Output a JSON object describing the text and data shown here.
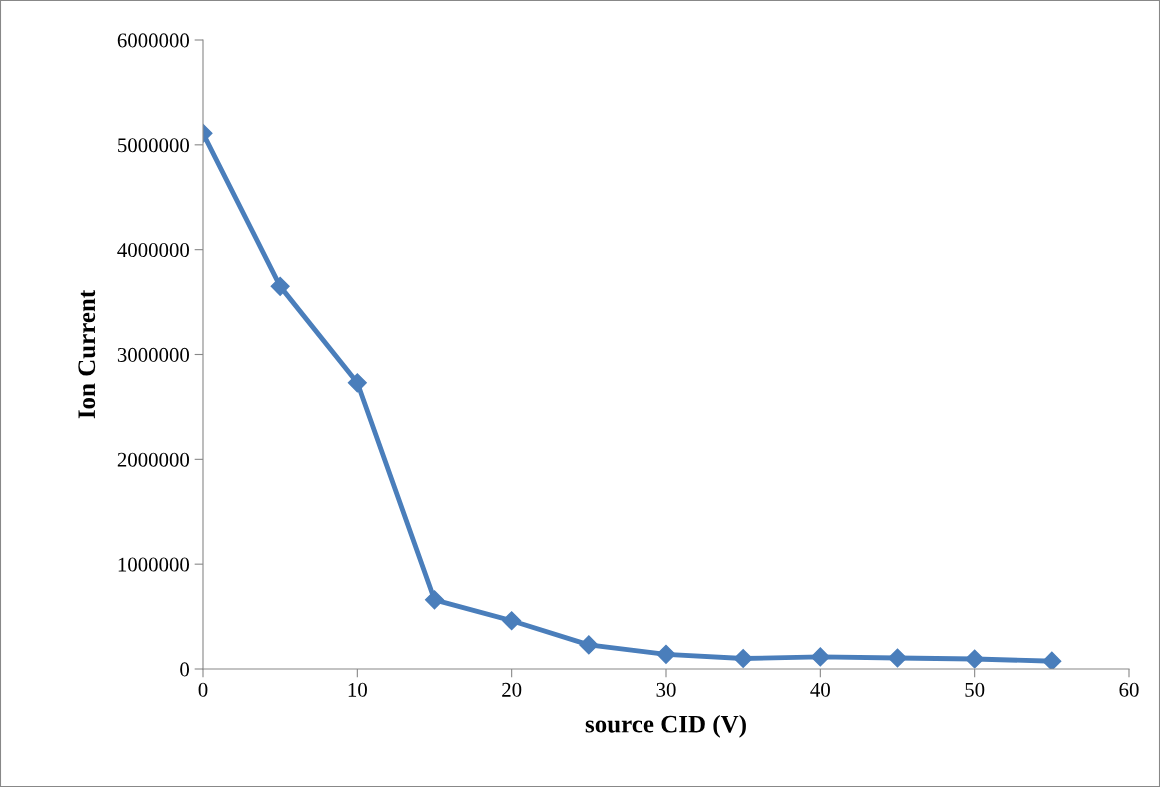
{
  "chart_data": {
    "type": "line",
    "xlabel": "source CID (V)",
    "ylabel": "Ion Current",
    "x": [
      0,
      5,
      10,
      15,
      20,
      25,
      30,
      35,
      40,
      45,
      50,
      55
    ],
    "series": [
      {
        "color": "#4a7ebb",
        "values": [
          5110000,
          3650000,
          2730000,
          660000,
          460000,
          230000,
          140000,
          100000,
          115000,
          105000,
          95000,
          75000
        ]
      }
    ],
    "xlim": [
      0,
      60
    ],
    "xticks": [
      0,
      10,
      20,
      30,
      40,
      50,
      60
    ],
    "ylim": [
      0,
      6000000
    ],
    "yticks": [
      0,
      1000000,
      2000000,
      3000000,
      4000000,
      5000000,
      6000000
    ],
    "grid": false,
    "legend": false,
    "marker": "diamond",
    "line_style": "solid"
  }
}
